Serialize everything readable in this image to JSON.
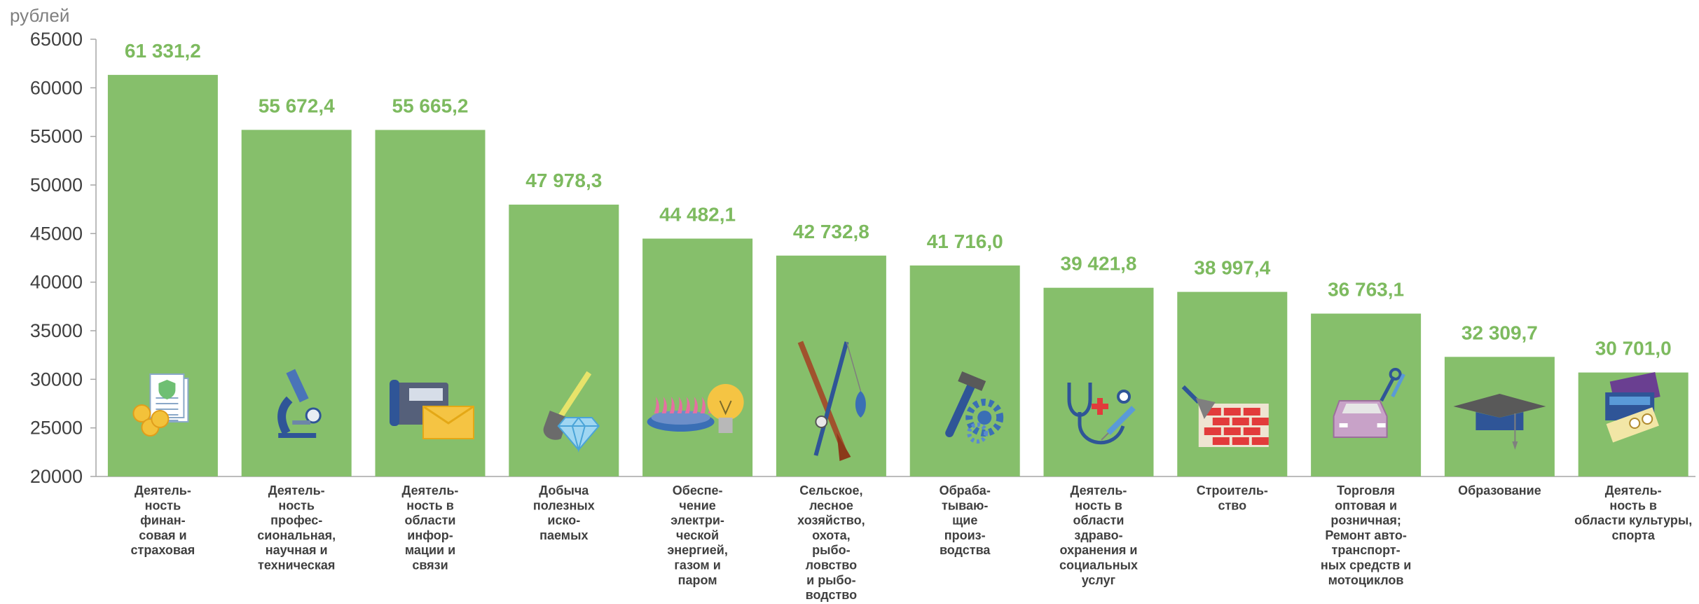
{
  "chart_data": {
    "type": "bar",
    "unit_label": "рублей",
    "ylim": [
      20000,
      65000
    ],
    "yticks": [
      "65000",
      "60000",
      "55000",
      "50000",
      "45000",
      "40000",
      "35000",
      "30000",
      "25000",
      "20000"
    ],
    "bar_color": "#86bf6b",
    "value_label_color": "#7dba5f",
    "grid": false,
    "categories": [
      {
        "lines": [
          "Деятель-",
          "ность",
          "финан-",
          "совая и",
          "страховая"
        ],
        "icon": "finance-document-coins-icon"
      },
      {
        "lines": [
          "Деятель-",
          "ность",
          "профес-",
          "сиональная,",
          "научная и",
          "техническая"
        ],
        "icon": "microscope-icon"
      },
      {
        "lines": [
          "Деятель-",
          "ность в",
          "области",
          "инфор-",
          "мации и",
          "связи"
        ],
        "icon": "phone-envelope-icon"
      },
      {
        "lines": [
          "Добыча",
          "полезных",
          "иско-",
          "паемых"
        ],
        "icon": "shovel-diamond-icon"
      },
      {
        "lines": [
          "Обеспе-",
          "чение",
          "электри-",
          "ческой",
          "энергией,",
          "газом и",
          "паром"
        ],
        "icon": "gas-burner-lightbulb-icon"
      },
      {
        "lines": [
          "Сельское,",
          "лесное",
          "хозяйство,",
          "охота,",
          "рыбо-",
          "ловство",
          "и рыбо-",
          "водство"
        ],
        "icon": "rifle-fishing-rod-icon"
      },
      {
        "lines": [
          "Обраба-",
          "тываю-",
          "щие",
          "произ-",
          "водства"
        ],
        "icon": "hammer-gears-icon"
      },
      {
        "lines": [
          "Деятель-",
          "ность в",
          "области",
          "здраво-",
          "охранения и",
          "социальных",
          "услуг"
        ],
        "icon": "stethoscope-syringe-icon"
      },
      {
        "lines": [
          "Строитель-",
          "ство"
        ],
        "icon": "trowel-bricks-icon"
      },
      {
        "lines": [
          "Торговля",
          "оптовая и",
          "розничная;",
          "Ремонт авто-",
          "транспорт-",
          "ных средств и",
          "мотоциклов"
        ],
        "icon": "car-wrench-icon"
      },
      {
        "lines": [
          "Образование"
        ],
        "icon": "graduation-cap-icon"
      },
      {
        "lines": [
          "Деятель-",
          "ность в",
          "области культуры,",
          "спорта"
        ],
        "icon": "tickets-theatre-masks-icon"
      }
    ],
    "values": [
      61331.2,
      55672.4,
      55665.2,
      47978.3,
      44482.1,
      42732.8,
      41716.0,
      39421.8,
      38997.4,
      36763.1,
      32309.7,
      30701.0
    ],
    "value_labels": [
      "61 331,2",
      "55 672,4",
      "55 665,2",
      "47 978,3",
      "44 482,1",
      "42 732,8",
      "41 716,0",
      "39 421,8",
      "38 997,4",
      "36 763,1",
      "32 309,7",
      "30 701,0"
    ]
  }
}
